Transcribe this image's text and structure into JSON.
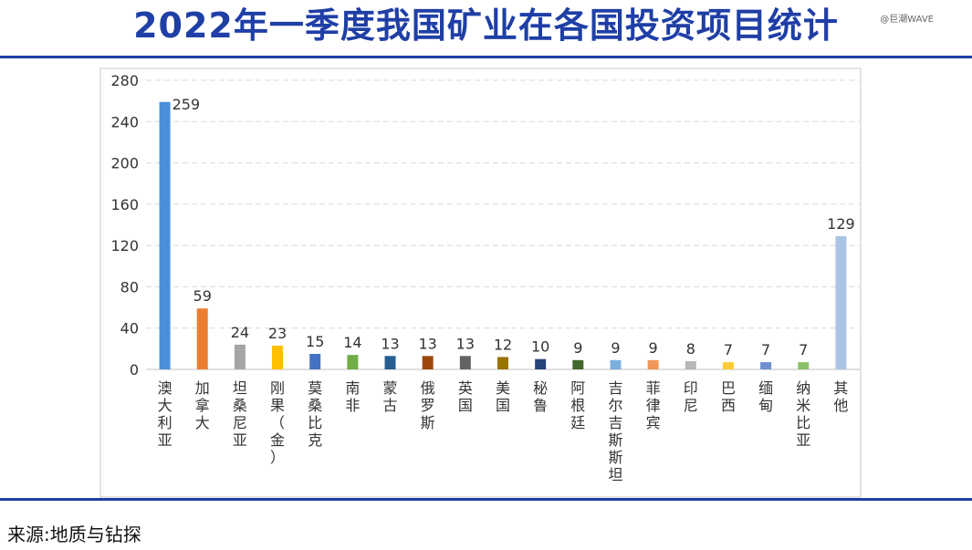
{
  "title": "2022年一季度我国矿业在各国投资项目统计",
  "watermark": "@巨潮WAVE",
  "source": "来源:地质与钻探",
  "chart_data": {
    "type": "bar",
    "title": "2022年一季度我国矿业在各国投资项目统计",
    "xlabel": "",
    "ylabel": "",
    "ylim": [
      0,
      280
    ],
    "yticks": [
      0,
      40,
      80,
      120,
      160,
      200,
      240,
      280
    ],
    "grid": true,
    "categories": [
      "澳大利亚",
      "加拿大",
      "坦桑尼亚",
      "刚果（金）",
      "莫桑比克",
      "南非",
      "蒙古",
      "俄罗斯",
      "英国",
      "美国",
      "秘鲁",
      "阿根廷",
      "吉尔吉斯斯坦",
      "菲律宾",
      "印尼",
      "巴西",
      "缅甸",
      "纳米比亚",
      "其他"
    ],
    "values": [
      259,
      59,
      24,
      23,
      15,
      14,
      13,
      13,
      13,
      12,
      10,
      9,
      9,
      9,
      8,
      7,
      7,
      7,
      129
    ],
    "colors": [
      "#4a90d9",
      "#ed7d31",
      "#a5a5a5",
      "#ffc000",
      "#4472c4",
      "#70ad47",
      "#255e91",
      "#9e480e",
      "#636363",
      "#997300",
      "#264478",
      "#43682b",
      "#7cafdd",
      "#f1975a",
      "#b7b7b7",
      "#ffcd33",
      "#6f8fd0",
      "#8cc168",
      "#a9c4e5"
    ]
  }
}
